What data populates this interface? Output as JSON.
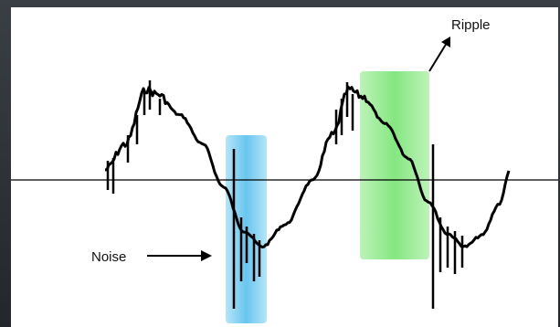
{
  "annotations": {
    "noise_label": "Noise",
    "ripple_label": "Ripple"
  },
  "colors": {
    "background": "#ffffff",
    "frame": "#2a2e33",
    "waveform": "#000000",
    "axis": "#000000",
    "noise_highlight": "#5bc4f0",
    "ripple_highlight": "#7ee27a"
  }
}
